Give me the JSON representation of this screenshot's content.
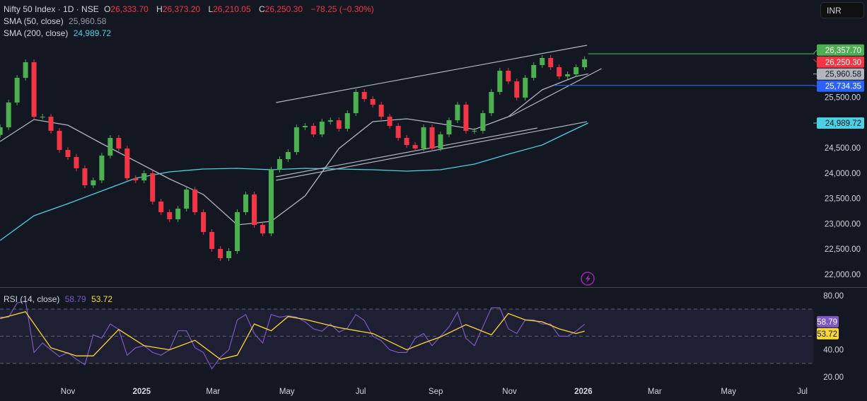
{
  "header": {
    "symbol": "Nifty 50 Index · 1D · NSE",
    "open_label": "O",
    "open": "26,333.70",
    "high_label": "H",
    "high": "26,373.20",
    "low_label": "L",
    "low": "26,210.05",
    "close_label": "C",
    "close": "26,250.30",
    "change": "−78.25 (−0.30%)",
    "sma50_label": "SMA (50, close)",
    "sma50_value": "25,960.58",
    "sma200_label": "SMA (200, close)",
    "sma200_value": "24,989.72",
    "rsi_label": "RSI (14, close)",
    "rsi_value": "58.79",
    "rsi_ma_value": "53.72",
    "currency_button": "INR"
  },
  "colors": {
    "background": "#131722",
    "up": "#4caf50",
    "down": "#f23645",
    "sma50": "#b2b5be",
    "sma200": "#4dd0e1",
    "rsi": "#7e57c2",
    "rsi_ma": "#fdd835",
    "resistance": "#4caf50",
    "support": "#2962ff"
  },
  "chart_data": [
    {
      "type": "candlestick",
      "title": "Nifty 50 Index · 1D · NSE",
      "ylim": [
        21800,
        26700
      ],
      "grid": false,
      "y_ticks": [
        "25,500.00",
        "24,500.00",
        "24,000.00",
        "23,500.00",
        "23,000.00",
        "22,500.00",
        "22,000.00"
      ],
      "y_tick_values": [
        25500,
        24500,
        24000,
        23500,
        23000,
        22500,
        22000
      ],
      "x_ticks": [
        {
          "label": "Nov",
          "date": "2024-11-01",
          "bold": false
        },
        {
          "label": "2025",
          "date": "2025-01-01",
          "bold": true
        },
        {
          "label": "Mar",
          "date": "2025-03-01",
          "bold": false
        },
        {
          "label": "May",
          "date": "2025-05-01",
          "bold": false
        },
        {
          "label": "Jul",
          "date": "2025-07-01",
          "bold": false
        },
        {
          "label": "Sep",
          "date": "2025-09-01",
          "bold": false
        },
        {
          "label": "Nov",
          "date": "2025-11-01",
          "bold": false
        },
        {
          "label": "2026",
          "date": "2026-01-01",
          "bold": true
        },
        {
          "label": "Mar",
          "date": "2026-03-01",
          "bold": false
        },
        {
          "label": "May",
          "date": "2026-05-01",
          "bold": false
        },
        {
          "label": "Jul",
          "date": "2026-07-01",
          "bold": false
        }
      ],
      "dates": [
        "2024-09-06",
        "2024-09-13",
        "2024-09-20",
        "2024-09-27",
        "2024-10-04",
        "2024-10-11",
        "2024-10-18",
        "2024-10-25",
        "2024-11-01",
        "2024-11-08",
        "2024-11-15",
        "2024-11-22",
        "2024-11-29",
        "2024-12-06",
        "2024-12-13",
        "2024-12-20",
        "2024-12-27",
        "2025-01-03",
        "2025-01-10",
        "2025-01-17",
        "2025-01-24",
        "2025-01-31",
        "2025-02-07",
        "2025-02-14",
        "2025-02-21",
        "2025-02-28",
        "2025-03-07",
        "2025-03-14",
        "2025-03-21",
        "2025-03-28",
        "2025-04-04",
        "2025-04-11",
        "2025-04-18",
        "2025-04-25",
        "2025-05-02",
        "2025-05-09",
        "2025-05-16",
        "2025-05-23",
        "2025-05-30",
        "2025-06-06",
        "2025-06-13",
        "2025-06-20",
        "2025-06-27",
        "2025-07-04",
        "2025-07-11",
        "2025-07-18",
        "2025-07-25",
        "2025-08-01",
        "2025-08-08",
        "2025-08-15",
        "2025-08-22",
        "2025-08-29",
        "2025-09-05",
        "2025-09-12",
        "2025-09-19",
        "2025-09-26",
        "2025-10-03",
        "2025-10-10",
        "2025-10-17",
        "2025-10-24",
        "2025-10-31",
        "2025-11-07",
        "2025-11-14",
        "2025-11-21",
        "2025-11-28",
        "2025-12-05",
        "2025-12-12",
        "2025-12-19",
        "2025-12-26",
        "2026-01-02"
      ],
      "close": [
        24906,
        25395,
        25883,
        26191,
        25115,
        25115,
        24836,
        24459,
        24319,
        24096,
        23760,
        23858,
        24347,
        24696,
        24487,
        23900,
        23858,
        23998,
        23439,
        23229,
        23090,
        23299,
        23676,
        23229,
        22838,
        22503,
        22321,
        22461,
        23229,
        23579,
        22978,
        22810,
        24068,
        24277,
        24417,
        24906,
        24934,
        24766,
        25017,
        25045,
        24878,
        25185,
        25604,
        25465,
        25353,
        25115,
        24934,
        24696,
        24556,
        24487,
        24906,
        24487,
        24766,
        25045,
        25353,
        24836,
        24836,
        25185,
        25604,
        26023,
        25813,
        25493,
        25883,
        26135,
        26275,
        26093,
        25911,
        25953,
        26093,
        26250.3
      ],
      "sma50": [
        [
          "2024-09-06",
          24626
        ],
        [
          "2024-10-04",
          25059
        ],
        [
          "2024-11-01",
          24948
        ],
        [
          "2024-11-29",
          24585
        ],
        [
          "2024-12-27",
          24236
        ],
        [
          "2025-01-24",
          23886
        ],
        [
          "2025-02-21",
          23579
        ],
        [
          "2025-03-21",
          22978
        ],
        [
          "2025-04-18",
          23048
        ],
        [
          "2025-05-16",
          23551
        ],
        [
          "2025-06-13",
          24487
        ],
        [
          "2025-07-11",
          25017
        ],
        [
          "2025-08-08",
          25073
        ],
        [
          "2025-09-05",
          24976
        ],
        [
          "2025-10-03",
          24864
        ],
        [
          "2025-10-31",
          25115
        ],
        [
          "2025-11-28",
          25646
        ],
        [
          "2025-12-26",
          25911
        ],
        [
          "2026-01-05",
          25960.58
        ]
      ],
      "sma200": [
        [
          "2024-09-06",
          22671
        ],
        [
          "2024-10-04",
          23160
        ],
        [
          "2024-11-01",
          23397
        ],
        [
          "2024-11-29",
          23648
        ],
        [
          "2024-12-27",
          23900
        ],
        [
          "2025-01-24",
          24026
        ],
        [
          "2025-02-21",
          24082
        ],
        [
          "2025-03-21",
          24096
        ],
        [
          "2025-04-18",
          24068
        ],
        [
          "2025-05-16",
          24096
        ],
        [
          "2025-06-13",
          24082
        ],
        [
          "2025-07-11",
          24068
        ],
        [
          "2025-08-08",
          24040
        ],
        [
          "2025-09-05",
          24068
        ],
        [
          "2025-10-03",
          24179
        ],
        [
          "2025-10-31",
          24375
        ],
        [
          "2025-11-28",
          24556
        ],
        [
          "2025-12-26",
          24878
        ],
        [
          "2026-01-05",
          24989.72
        ]
      ],
      "trendlines": [
        {
          "from": [
            "2025-04-22",
            25395
          ],
          "to": [
            "2026-01-04",
            26526
          ]
        },
        {
          "from": [
            "2025-04-22",
            23858
          ],
          "to": [
            "2026-01-04",
            25017
          ]
        },
        {
          "from": [
            "2025-04-22",
            23928
          ],
          "to": [
            "2025-11-24",
            24892
          ]
        },
        {
          "from": [
            "2025-11-01",
            25115
          ],
          "to": [
            "2026-01-16",
            26065
          ]
        }
      ],
      "horizontal_lines": [
        {
          "from": "2026-01-05",
          "price": 26357.7,
          "color": "#4caf50"
        },
        {
          "from": "2025-12-08",
          "price": 25734.35,
          "color": "#2962ff"
        }
      ],
      "price_tags": [
        {
          "value": "26,357.70",
          "price": 26357.7,
          "bg": "#4caf50",
          "fg": "#ffffff"
        },
        {
          "value": "26,250.30",
          "price": 26250.3,
          "bg": "#f23645",
          "fg": "#ffffff"
        },
        {
          "value": "25,960.58",
          "price": 25960.58,
          "bg": "#b2b5be",
          "fg": "#131722"
        },
        {
          "value": "25,734.35",
          "price": 25734.35,
          "bg": "#2962ff",
          "fg": "#ffffff"
        },
        {
          "value": "24,989.72",
          "price": 24989.72,
          "bg": "#4dd0e1",
          "fg": "#131722"
        }
      ]
    },
    {
      "type": "line",
      "title": "RSI (14, close)",
      "ylim": [
        15,
        85
      ],
      "y_ticks": [
        "80.00",
        "40.00",
        "20.00"
      ],
      "y_tick_values": [
        80,
        40,
        20
      ],
      "bands": [
        70,
        50,
        30
      ],
      "rsi": [
        64,
        64,
        74.5,
        76,
        38,
        45,
        40,
        35,
        38,
        33,
        29,
        51,
        48.5,
        59,
        55,
        36,
        41.5,
        43,
        38,
        36,
        40,
        54,
        54,
        41.5,
        38,
        26,
        34.5,
        40,
        62,
        66,
        52,
        45,
        66,
        64,
        65,
        64,
        60.6,
        55.4,
        53.7,
        59,
        53,
        56,
        66,
        61.5,
        50,
        46.7,
        40,
        38,
        38,
        48.5,
        52,
        43,
        50,
        57,
        67.6,
        48.5,
        43,
        57,
        71,
        71,
        55.4,
        52,
        62,
        62,
        59,
        59,
        50,
        50,
        53.7,
        58.79
      ],
      "rsi_ma": [
        [
          "2024-09-06",
          63
        ],
        [
          "2024-09-27",
          68
        ],
        [
          "2024-10-18",
          41.5
        ],
        [
          "2024-11-08",
          35.5
        ],
        [
          "2024-11-22",
          35.5
        ],
        [
          "2024-12-13",
          55
        ],
        [
          "2025-01-03",
          43
        ],
        [
          "2025-01-24",
          40
        ],
        [
          "2025-02-14",
          47
        ],
        [
          "2025-03-07",
          33
        ],
        [
          "2025-03-21",
          36
        ],
        [
          "2025-04-04",
          59
        ],
        [
          "2025-04-18",
          54
        ],
        [
          "2025-05-02",
          64.5
        ],
        [
          "2025-05-16",
          62.4
        ],
        [
          "2025-06-13",
          56.3
        ],
        [
          "2025-07-11",
          52
        ],
        [
          "2025-08-08",
          40
        ],
        [
          "2025-08-22",
          45
        ],
        [
          "2025-09-05",
          49.5
        ],
        [
          "2025-09-26",
          58.5
        ],
        [
          "2025-10-17",
          51
        ],
        [
          "2025-10-31",
          66.7
        ],
        [
          "2025-11-14",
          62
        ],
        [
          "2025-11-28",
          60.6
        ],
        [
          "2025-12-12",
          55.4
        ],
        [
          "2025-12-26",
          52
        ],
        [
          "2026-01-02",
          53.72
        ]
      ],
      "tags": [
        {
          "value": "58.79",
          "v": 58.79,
          "bg": "#7e57c2",
          "fg": "#ffffff"
        },
        {
          "value": "53.72",
          "v": 53.72,
          "bg": "#fdd835",
          "fg": "#131722"
        }
      ]
    }
  ]
}
